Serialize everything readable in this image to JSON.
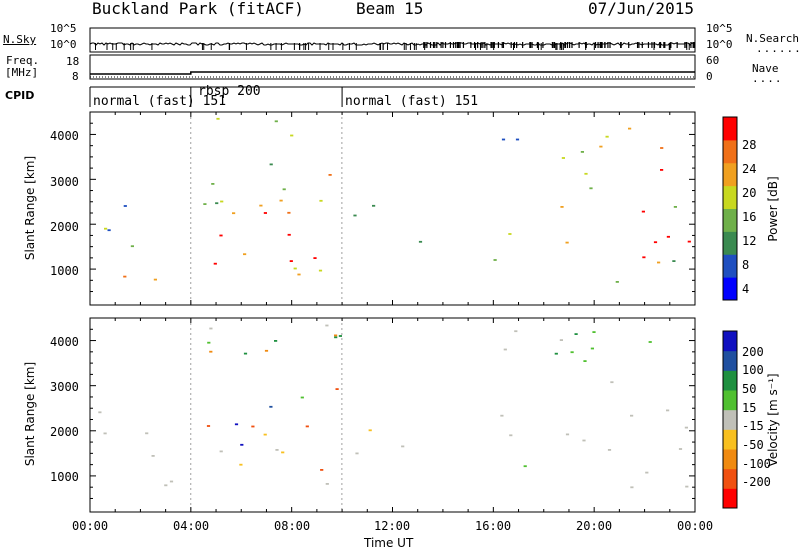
{
  "header": {
    "site": "Buckland Park (fitACF)",
    "beam": "Beam 15",
    "date": "07/Jun/2015"
  },
  "noise_panel": {
    "left_label": "N.Sky",
    "right_label": "N.Search",
    "left_ticks": [
      "10^5",
      "10^0"
    ],
    "right_ticks": [
      "10^5",
      "10^0"
    ]
  },
  "freq_panel": {
    "left_label_top": "Freq.",
    "left_label_bottom": "[MHz]",
    "left_ticks": [
      "18",
      "8"
    ],
    "right_label": "Nave",
    "right_ticks": [
      "60",
      "0"
    ]
  },
  "cpid_panel": {
    "label": "CPID",
    "segments": [
      {
        "name": "normal (fast) 151",
        "start_hour": 0,
        "end_hour": 4
      },
      {
        "name": "rbsp 200",
        "start_hour": 4,
        "end_hour": 10
      },
      {
        "name": "normal (fast) 151",
        "start_hour": 10,
        "end_hour": 24
      }
    ]
  },
  "chart_data": [
    {
      "type": "heatmap",
      "title": "",
      "xlabel": "",
      "ylabel": "Slant Range [km]",
      "x_ticks": [
        "00:00",
        "04:00",
        "08:00",
        "12:00",
        "16:00",
        "20:00",
        "00:00"
      ],
      "x_range_hours": [
        0,
        24
      ],
      "y_ticks": [
        "1000",
        "2000",
        "3000",
        "4000"
      ],
      "ylim_km": [
        200,
        4500
      ],
      "colorbar": {
        "label": "Power [dB]",
        "ticks": [
          "4",
          "8",
          "12",
          "16",
          "20",
          "24",
          "28"
        ],
        "range": [
          0,
          30
        ],
        "colors": [
          "#0000ff",
          "#1f4fc0",
          "#3a8a50",
          "#6fb04a",
          "#c8d820",
          "#f0a020",
          "#f07018",
          "#ff0000"
        ]
      }
    },
    {
      "type": "heatmap",
      "title": "",
      "xlabel": "Time UT",
      "ylabel": "Slant Range [km]",
      "x_ticks": [
        "00:00",
        "04:00",
        "08:00",
        "12:00",
        "16:00",
        "20:00",
        "00:00"
      ],
      "x_range_hours": [
        0,
        24
      ],
      "y_ticks": [
        "1000",
        "2000",
        "3000",
        "4000"
      ],
      "ylim_km": [
        200,
        4500
      ],
      "colorbar": {
        "label": "Velocity [m s⁻¹]",
        "ticks": [
          "200",
          "100",
          "50",
          "15",
          "-15",
          "-50",
          "-100",
          "-200"
        ],
        "range": [
          -250,
          250
        ],
        "colors": [
          "#ff0000",
          "#f05010",
          "#f08a10",
          "#f8c020",
          "#c0c0b8",
          "#50c030",
          "#1f9040",
          "#2050a0",
          "#1010c0"
        ]
      }
    }
  ]
}
